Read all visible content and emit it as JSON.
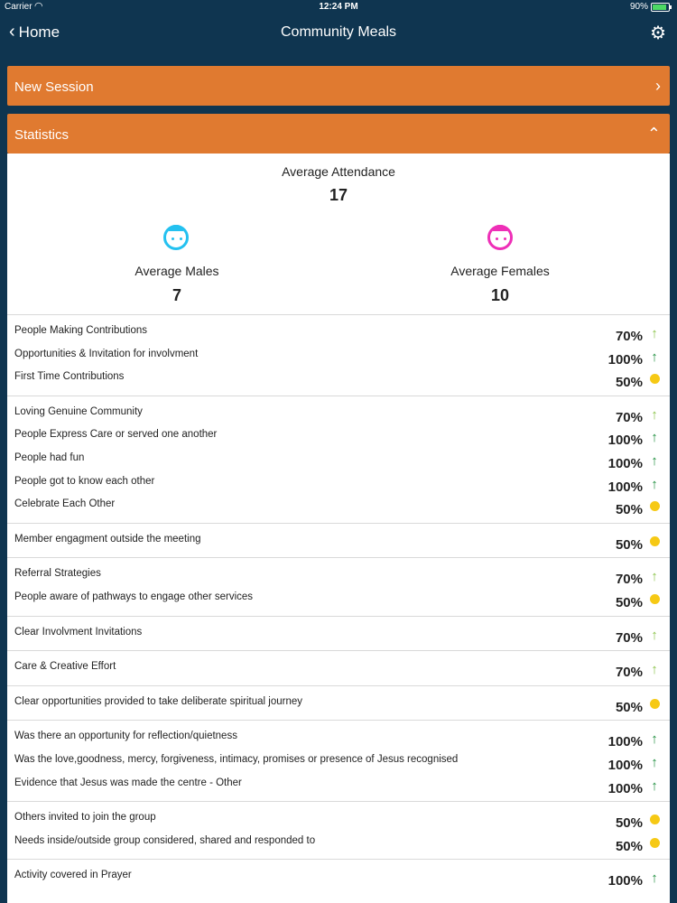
{
  "status_bar": {
    "carrier": "Carrier",
    "time": "12:24 PM",
    "battery": "90%"
  },
  "nav": {
    "back_label": "Home",
    "title": "Community Meals"
  },
  "new_session": {
    "label": "New Session"
  },
  "statistics": {
    "label": "Statistics",
    "average_attendance": {
      "label": "Average Attendance",
      "value": "17"
    },
    "average_males": {
      "label": "Average Males",
      "value": "7"
    },
    "average_females": {
      "label": "Average Females",
      "value": "10"
    },
    "groups": [
      {
        "rows": [
          {
            "label": "People Making Contributions",
            "value": "70%",
            "indicator": "up-light"
          },
          {
            "label": "Opportunities & Invitation for involvment",
            "value": "100%",
            "indicator": "up-dark"
          },
          {
            "label": "First Time Contributions",
            "value": "50%",
            "indicator": "dot"
          }
        ]
      },
      {
        "rows": [
          {
            "label": "Loving Genuine Community",
            "value": "70%",
            "indicator": "up-light"
          },
          {
            "label": "People Express Care or served one another",
            "value": "100%",
            "indicator": "up-dark"
          },
          {
            "label": "People had fun",
            "value": "100%",
            "indicator": "up-dark"
          },
          {
            "label": "People got to know each other",
            "value": "100%",
            "indicator": "up-dark"
          },
          {
            "label": "Celebrate Each Other",
            "value": "50%",
            "indicator": "dot"
          }
        ]
      },
      {
        "rows": [
          {
            "label": "Member engagment outside the meeting",
            "value": "50%",
            "indicator": "dot"
          }
        ]
      },
      {
        "rows": [
          {
            "label": "Referral Strategies",
            "value": "70%",
            "indicator": "up-light"
          },
          {
            "label": "People aware of pathways to engage other services",
            "value": "50%",
            "indicator": "dot"
          }
        ]
      },
      {
        "rows": [
          {
            "label": "Clear Involvment Invitations",
            "value": "70%",
            "indicator": "up-light"
          }
        ]
      },
      {
        "rows": [
          {
            "label": "Care & Creative Effort",
            "value": "70%",
            "indicator": "up-light"
          }
        ]
      },
      {
        "rows": [
          {
            "label": "Clear opportunities provided to take deliberate spiritual journey",
            "value": "50%",
            "indicator": "dot"
          }
        ]
      },
      {
        "rows": [
          {
            "label": "Was there an opportunity for reflection/quietness",
            "value": "100%",
            "indicator": "up-dark"
          },
          {
            "label": "Was the love,goodness, mercy, forgiveness, intimacy, promises or presence of Jesus recognised",
            "value": "100%",
            "indicator": "up-dark"
          },
          {
            "label": "Evidence that Jesus was made the centre - Other",
            "value": "100%",
            "indicator": "up-dark"
          }
        ]
      },
      {
        "rows": [
          {
            "label": "Others invited to join the group",
            "value": "50%",
            "indicator": "dot"
          },
          {
            "label": "Needs inside/outside group considered, shared and responded to",
            "value": "50%",
            "indicator": "dot"
          }
        ]
      },
      {
        "rows": [
          {
            "label": "Activity covered in Prayer",
            "value": "100%",
            "indicator": "up-dark"
          }
        ]
      }
    ]
  },
  "colors": {
    "background": "#0f3550",
    "accent_orange": "#e07a30",
    "male_icon": "#24c1f0",
    "female_icon": "#ee2fb7",
    "up_light": "#8bc34a",
    "up_dark": "#1e8e3e",
    "dot": "#f6c915"
  }
}
